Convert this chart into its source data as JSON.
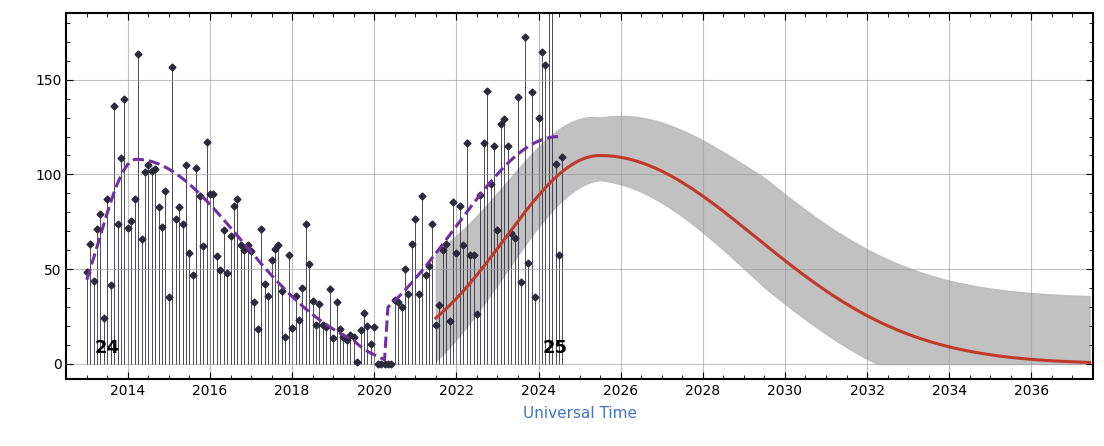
{
  "title": "",
  "xlabel": "Universal Time",
  "ylabel": "",
  "xlim": [
    2012.5,
    2037.5
  ],
  "ylim": [
    -8,
    185
  ],
  "yticks": [
    0,
    50,
    100,
    150
  ],
  "xticks": [
    2014,
    2016,
    2018,
    2020,
    2022,
    2024,
    2026,
    2028,
    2030,
    2032,
    2034,
    2036
  ],
  "background_color": "#ffffff",
  "grid_color": "#999999",
  "observed_color": "#2a2a3a",
  "smoothed_color": "#7030a0",
  "prediction_color": "#c0392b",
  "uncertainty_color": "#bbbbbb",
  "smoothed_linewidth": 2.2,
  "prediction_linewidth": 2.2,
  "marker_style": "D",
  "marker_size": 3.5,
  "figsize": [
    11.04,
    4.46
  ],
  "dpi": 100
}
